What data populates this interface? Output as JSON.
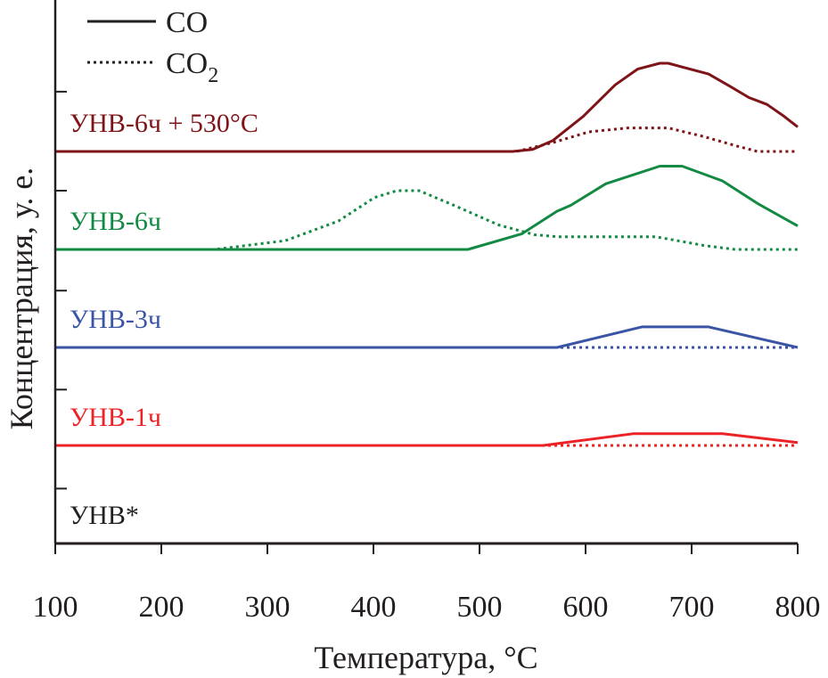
{
  "chart_data": {
    "type": "line",
    "title": "",
    "xlabel": "Температура, °C",
    "ylabel": "Концентрация, у. е.",
    "xlim": [
      100,
      800
    ],
    "ylim": [
      0,
      5.55
    ],
    "xticks": [
      100,
      200,
      300,
      400,
      500,
      600,
      700,
      800
    ],
    "yticks": [
      0.56,
      1.57,
      2.58,
      3.6,
      4.61
    ],
    "grid": false,
    "legend": {
      "placement": "top-left",
      "entries": [
        {
          "label": "CO",
          "style": "solid"
        },
        {
          "label": "CO",
          "sub": "2",
          "style": "dotted"
        }
      ]
    },
    "series": [
      {
        "name": "УНВ-6ч + 530°C",
        "color": "#7f1418",
        "gas": "CO",
        "style": "solid",
        "points": [
          [
            100,
            4.0
          ],
          [
            531,
            4.0
          ],
          [
            550,
            4.02
          ],
          [
            569,
            4.11
          ],
          [
            598,
            4.36
          ],
          [
            628,
            4.68
          ],
          [
            649,
            4.84
          ],
          [
            670,
            4.9
          ],
          [
            678,
            4.9
          ],
          [
            716,
            4.79
          ],
          [
            737,
            4.66
          ],
          [
            754,
            4.55
          ],
          [
            771,
            4.48
          ],
          [
            787,
            4.36
          ],
          [
            800,
            4.25
          ]
        ]
      },
      {
        "name": "УНВ-6ч + 530°C",
        "color": "#7f1418",
        "gas": "CO2",
        "style": "dotted",
        "points": [
          [
            100,
            4.0
          ],
          [
            535,
            4.0
          ],
          [
            569,
            4.09
          ],
          [
            603,
            4.2
          ],
          [
            640,
            4.24
          ],
          [
            678,
            4.24
          ],
          [
            712,
            4.15
          ],
          [
            741,
            4.06
          ],
          [
            762,
            4.0
          ],
          [
            800,
            4.0
          ]
        ]
      },
      {
        "name": "УНВ-6ч",
        "color": "#138a43",
        "gas": "CO",
        "style": "solid",
        "points": [
          [
            100,
            3.0
          ],
          [
            489,
            3.0
          ],
          [
            540,
            3.16
          ],
          [
            573,
            3.39
          ],
          [
            586,
            3.45
          ],
          [
            619,
            3.67
          ],
          [
            670,
            3.85
          ],
          [
            691,
            3.85
          ],
          [
            729,
            3.7
          ],
          [
            762,
            3.47
          ],
          [
            800,
            3.24
          ]
        ]
      },
      {
        "name": "УНВ-6ч",
        "color": "#138a43",
        "gas": "CO2",
        "style": "dotted",
        "points": [
          [
            100,
            3.0
          ],
          [
            250,
            3.0
          ],
          [
            317,
            3.09
          ],
          [
            367,
            3.29
          ],
          [
            401,
            3.53
          ],
          [
            422,
            3.6
          ],
          [
            443,
            3.6
          ],
          [
            476,
            3.45
          ],
          [
            518,
            3.25
          ],
          [
            552,
            3.15
          ],
          [
            573,
            3.13
          ],
          [
            666,
            3.13
          ],
          [
            712,
            3.04
          ],
          [
            741,
            3.0
          ],
          [
            800,
            3.0
          ]
        ]
      },
      {
        "name": "УНВ-3ч",
        "color": "#3a55a6",
        "gas": "CO",
        "style": "solid",
        "points": [
          [
            100,
            2.0
          ],
          [
            573,
            2.0
          ],
          [
            653,
            2.21
          ],
          [
            716,
            2.21
          ],
          [
            800,
            2.0
          ]
        ]
      },
      {
        "name": "УНВ-3ч",
        "color": "#3a55a6",
        "gas": "CO2",
        "style": "dotted",
        "points": [
          [
            100,
            2.0
          ],
          [
            800,
            2.0
          ]
        ]
      },
      {
        "name": "УНВ-1ч",
        "color": "#ec2227",
        "gas": "CO",
        "style": "solid",
        "points": [
          [
            100,
            1.0
          ],
          [
            560,
            1.0
          ],
          [
            645,
            1.12
          ],
          [
            729,
            1.12
          ],
          [
            800,
            1.03
          ]
        ]
      },
      {
        "name": "УНВ-1ч",
        "color": "#ec2227",
        "gas": "CO2",
        "style": "dotted",
        "points": [
          [
            100,
            1.0
          ],
          [
            800,
            1.0
          ]
        ]
      },
      {
        "name": "УНВ*",
        "color": "#231f20",
        "gas": "CO",
        "style": "solid",
        "points": [
          [
            100,
            0.0
          ],
          [
            800,
            0.0
          ]
        ]
      },
      {
        "name": "УНВ*",
        "color": "#231f20",
        "gas": "CO2",
        "style": "dotted",
        "points": [
          [
            100,
            0.0
          ],
          [
            800,
            0.0
          ]
        ]
      }
    ],
    "annotations": [
      {
        "text": "УНВ-6ч + 530°C",
        "color": "#7f1418",
        "at": [
          115,
          4.3
        ]
      },
      {
        "text": "УНВ-6ч",
        "color": "#138a43",
        "at": [
          115,
          3.2
        ]
      },
      {
        "text": "УНВ-3ч",
        "color": "#3a55a6",
        "at": [
          115,
          2.2
        ]
      },
      {
        "text": "УНВ-1ч",
        "color": "#ec2227",
        "at": [
          115,
          1.1
        ]
      },
      {
        "text": "УНВ*",
        "color": "#231f20",
        "at": [
          115,
          0.1
        ]
      }
    ]
  }
}
